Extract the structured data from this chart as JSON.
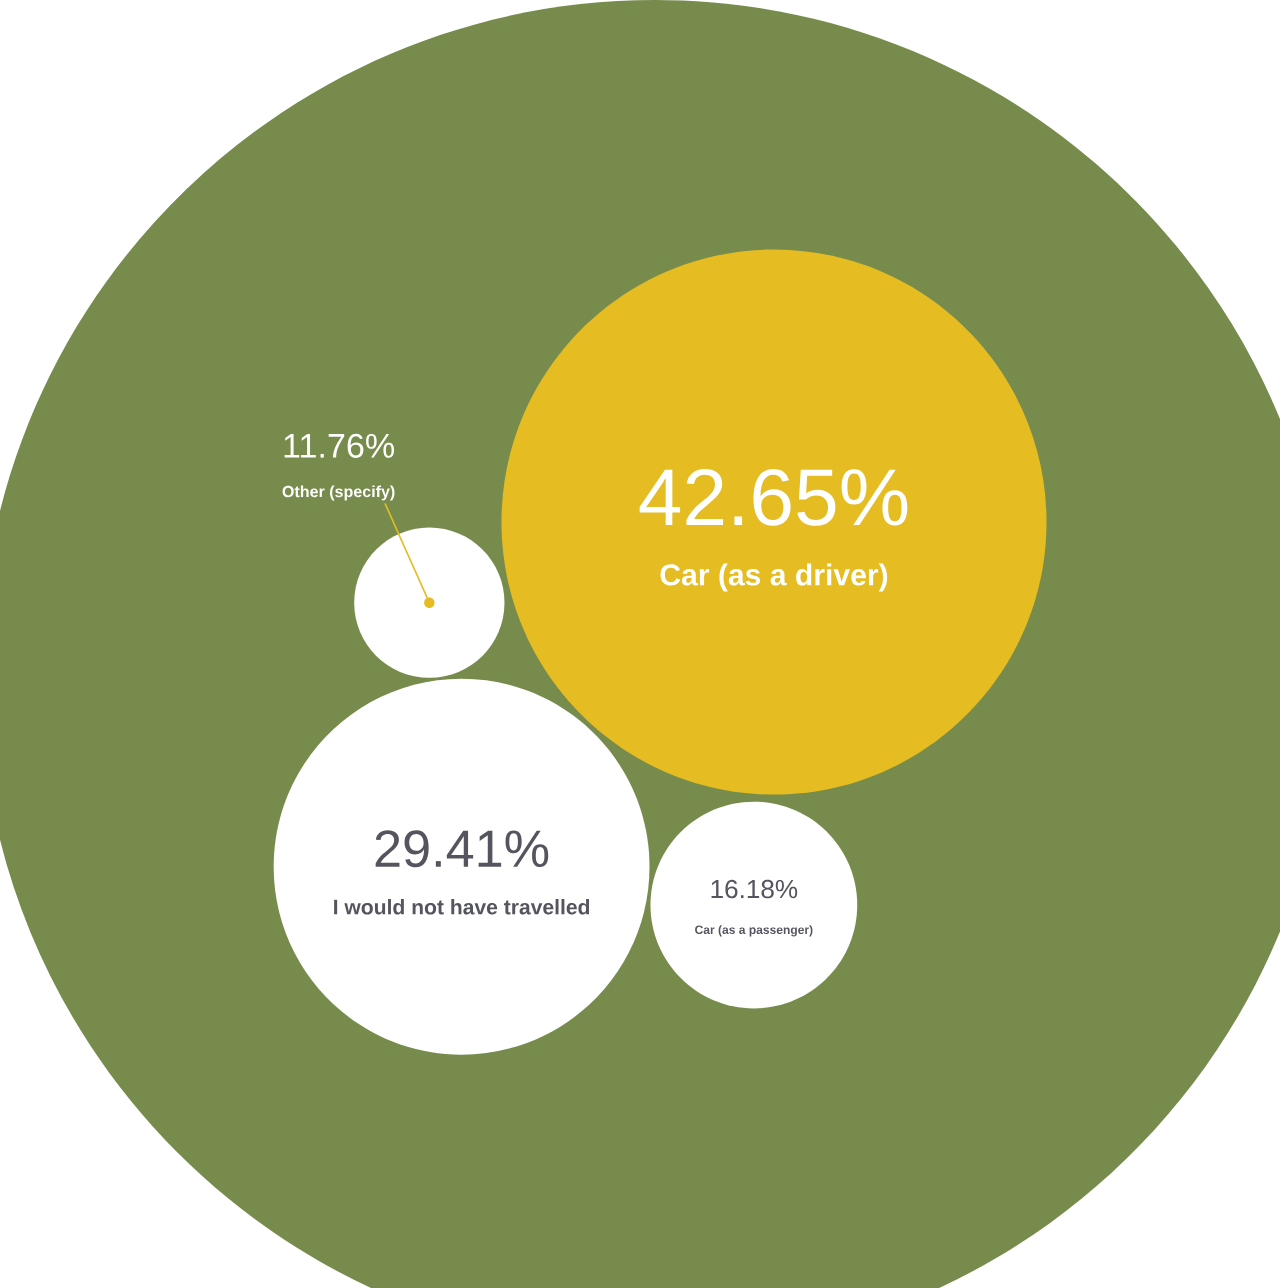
{
  "chart_data": {
    "type": "other",
    "categories": [
      "Car (as a driver)",
      "I would not have travelled",
      "Car (as a passenger)",
      "Other (specify)"
    ],
    "values": [
      42.65,
      29.41,
      16.18,
      11.76
    ],
    "value_labels": [
      "42.65%",
      "29.41%",
      "16.18%",
      "11.76%"
    ],
    "colors": [
      "#e5bc22",
      "#ffffff",
      "#ffffff",
      "#ffffff"
    ]
  }
}
